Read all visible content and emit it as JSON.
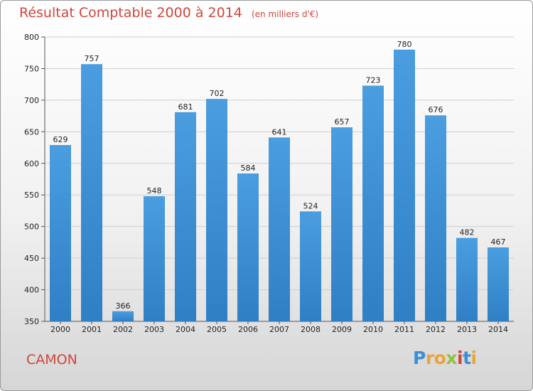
{
  "header": {
    "title": "Résultat Comptable 2000 à 2014",
    "unit": "(en milliers d'€)"
  },
  "footer": {
    "commune": "CAMON"
  },
  "logo": {
    "text": "Proxiti",
    "letters": [
      {
        "ch": "P",
        "color": "#3a8fd6"
      },
      {
        "ch": "r",
        "color": "#e8a53a"
      },
      {
        "ch": "o",
        "color": "#e8a53a"
      },
      {
        "ch": "x",
        "color": "#8cc63f"
      },
      {
        "ch": "i",
        "color": "#d0453c"
      },
      {
        "ch": "t",
        "color": "#3a8fd6"
      },
      {
        "ch": "i",
        "color": "#e8a53a"
      }
    ]
  },
  "colors": {
    "bar": "#4a9ee0",
    "bar_dark": "#2f7fc4",
    "grid": "#cfcfcf",
    "title": "#d0453c"
  },
  "chart_data": {
    "type": "bar",
    "title": "Résultat Comptable 2000 à 2014",
    "ylabel": "(en milliers d'€)",
    "categories": [
      "2000",
      "2001",
      "2002",
      "2003",
      "2004",
      "2005",
      "2006",
      "2007",
      "2008",
      "2009",
      "2010",
      "2011",
      "2012",
      "2013",
      "2014"
    ],
    "values": [
      629,
      757,
      366,
      548,
      681,
      702,
      584,
      641,
      524,
      657,
      723,
      780,
      676,
      482,
      467
    ],
    "ylim": [
      350,
      800
    ],
    "yticks": [
      350,
      400,
      450,
      500,
      550,
      600,
      650,
      700,
      750,
      800
    ],
    "grid": true
  }
}
